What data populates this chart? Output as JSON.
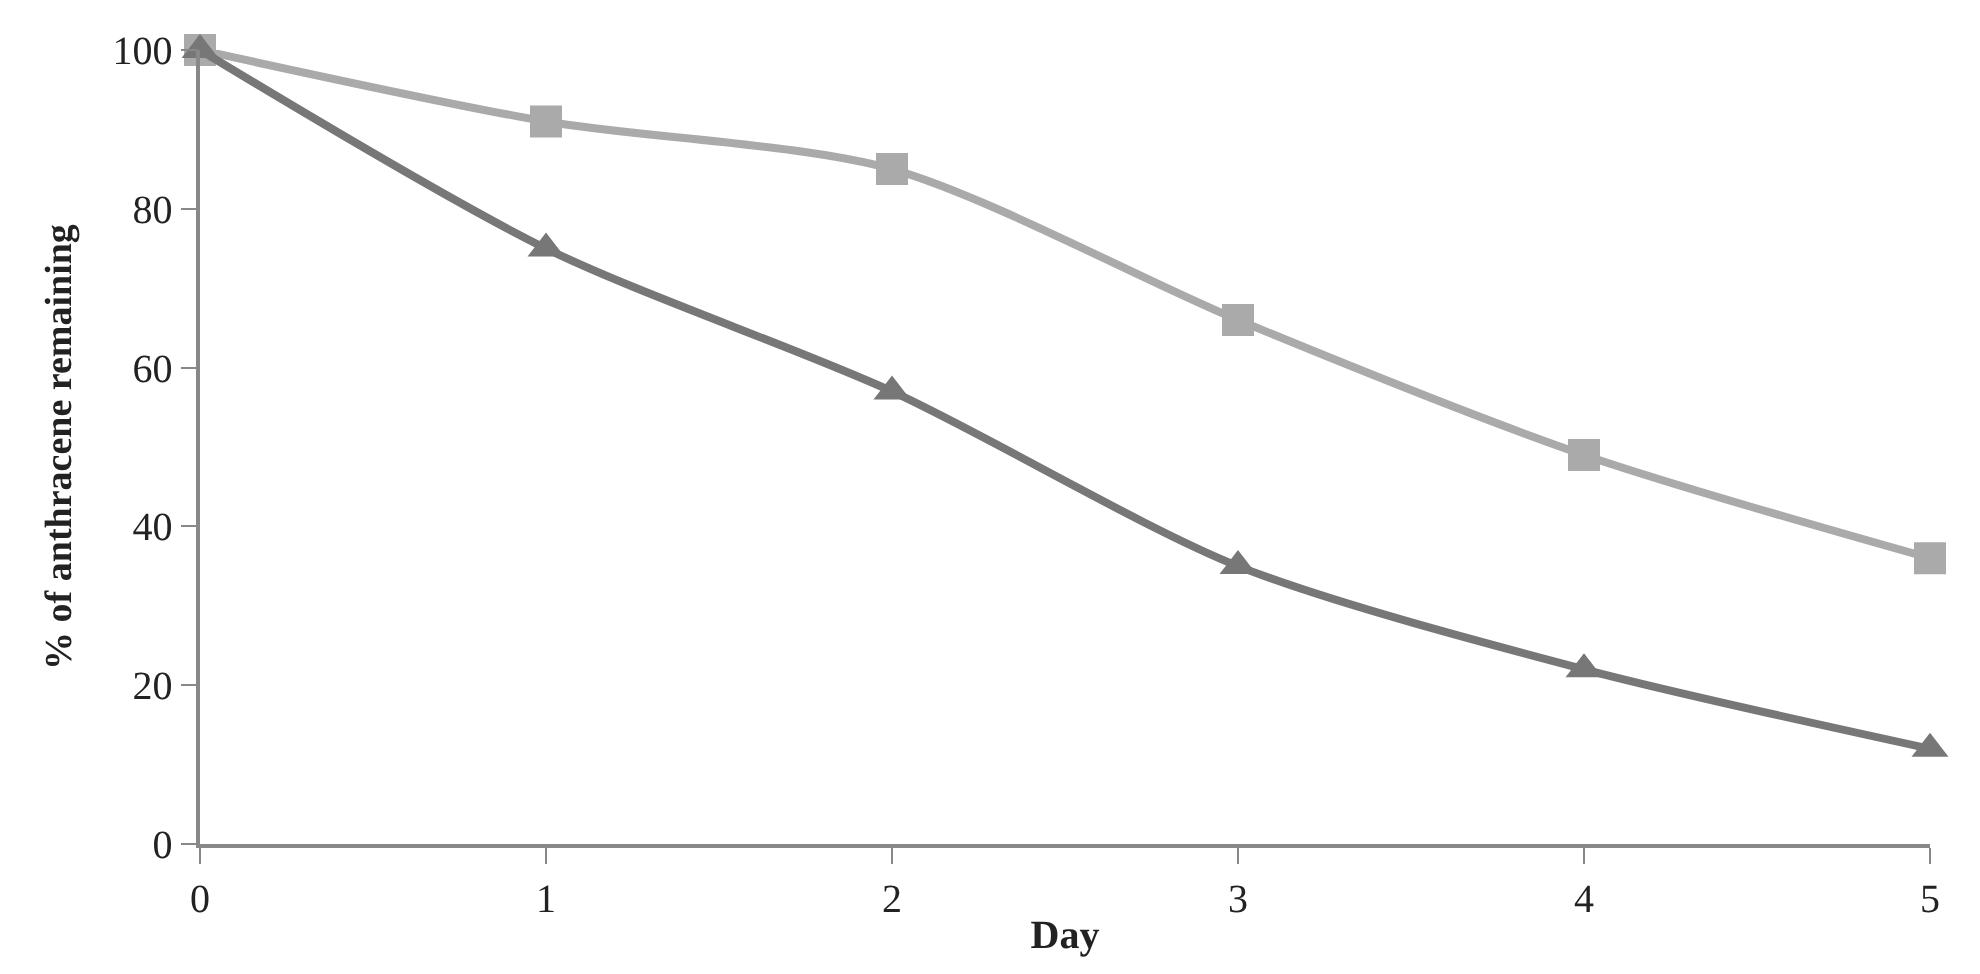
{
  "chart_data": {
    "type": "line",
    "xlabel": "Day",
    "ylabel": "% of anthracene remaining",
    "x": [
      0,
      1,
      2,
      3,
      4,
      5
    ],
    "series": [
      {
        "color": "#aaaaaa",
        "marker": "square",
        "values": [
          100,
          91,
          85,
          66,
          49,
          36
        ]
      },
      {
        "color": "#777777",
        "marker": "triangle",
        "values": [
          100,
          75,
          57,
          35,
          22,
          12
        ]
      }
    ],
    "xlim": [
      0,
      5
    ],
    "xticks": [
      0,
      1,
      2,
      3,
      4,
      5
    ],
    "ylim": [
      0,
      100
    ],
    "yticks": [
      0,
      20,
      40,
      60,
      80,
      100
    ],
    "line_style": "solid"
  }
}
